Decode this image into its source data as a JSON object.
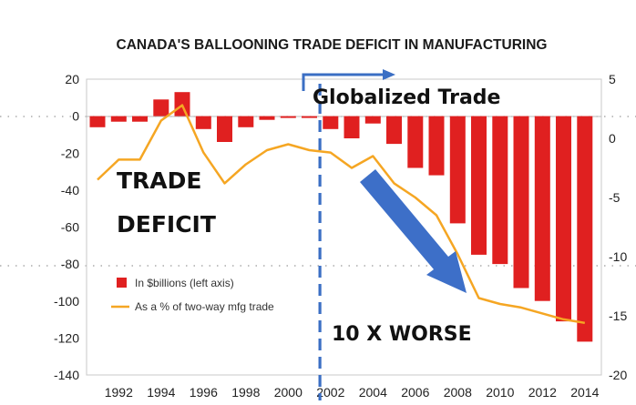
{
  "chart_data": {
    "type": "bar",
    "title": "CANADA'S BALLOONING TRADE DEFICIT IN MANUFACTURING",
    "x_tick_labels": [
      "1992",
      "1994",
      "1996",
      "1998",
      "2000",
      "2002",
      "2004",
      "2006",
      "2008",
      "2010",
      "2012",
      "2014"
    ],
    "left_axis": {
      "ylim": [
        -140,
        20
      ],
      "ticks": [
        "20",
        "0",
        "-20",
        "-40",
        "-60",
        "-80",
        "-100",
        "-120",
        "-140"
      ]
    },
    "right_axis": {
      "ylim": [
        -20,
        5
      ],
      "ticks": [
        "5",
        "0",
        "-5",
        "-10",
        "-15",
        "-20"
      ]
    },
    "years": [
      1991,
      1992,
      1993,
      1994,
      1995,
      1996,
      1997,
      1998,
      1999,
      2000,
      2001,
      2002,
      2003,
      2004,
      2005,
      2006,
      2007,
      2008,
      2009,
      2010,
      2011,
      2012,
      2013,
      2014
    ],
    "series": [
      {
        "name": "In $billions (left axis)",
        "type": "bar",
        "color": "#e02020",
        "axis": "left",
        "values": [
          -6,
          -3,
          -3,
          9,
          13,
          -7,
          -14,
          -6,
          -2,
          -1,
          -1,
          -7,
          -12,
          -4,
          -15,
          -28,
          -32,
          -58,
          -75,
          -80,
          -93,
          -100,
          -111,
          -122
        ]
      },
      {
        "name": "As a % of two-way mfg trade (right axis)",
        "type": "line",
        "color": "#f5a623",
        "axis": "right",
        "values": [
          -3.5,
          -1.8,
          -1.8,
          1.5,
          2.8,
          -1.2,
          -3.8,
          -2.2,
          -1.0,
          -0.5,
          -1.0,
          -1.2,
          -2.5,
          -1.5,
          -3.8,
          -5.0,
          -6.5,
          -9.8,
          -13.5,
          -14.0,
          -14.3,
          -14.8,
          -15.3,
          -15.6
        ]
      }
    ],
    "legend": {
      "position": "bottom-left",
      "entries": [
        "In $billions (left axis)",
        "As a % of two-way mfg trade"
      ]
    },
    "annotations": {
      "trade_deficit_line1": "TRADE",
      "trade_deficit_line2": "DEFICIT",
      "globalized": "Globalized Trade",
      "worse": "10 X WORSE"
    },
    "divider_year": 2001.5,
    "grid": false
  },
  "colors": {
    "bar": "#e02020",
    "line": "#f5a623",
    "divider": "#3b6fc4",
    "big_arrow": "#3d6fc8"
  }
}
